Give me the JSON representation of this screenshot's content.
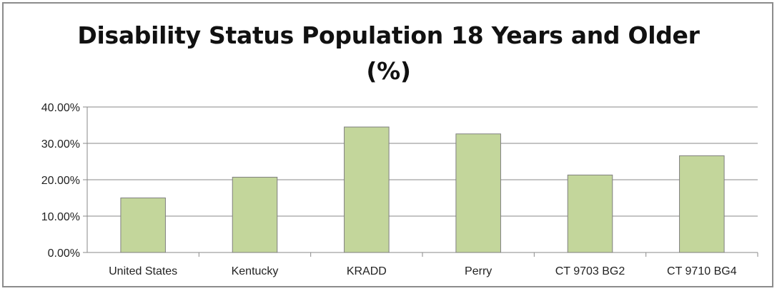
{
  "chart_data": {
    "type": "bar",
    "title_line1": "Disability Status Population 18 Years and Older",
    "title_line2": "(%)",
    "categories": [
      "United States",
      "Kentucky",
      "KRADD",
      "Perry",
      "CT 9703 BG2",
      "CT 9710 BG4"
    ],
    "values": [
      15.0,
      20.7,
      34.5,
      32.6,
      21.3,
      26.6
    ],
    "y_ticks": [
      "0.00%",
      "10.00%",
      "20.00%",
      "30.00%",
      "40.00%"
    ],
    "ylim": [
      0,
      40
    ],
    "grid": true,
    "bar_color": "#c3d69b",
    "bar_stroke": "#7f7f7f"
  }
}
